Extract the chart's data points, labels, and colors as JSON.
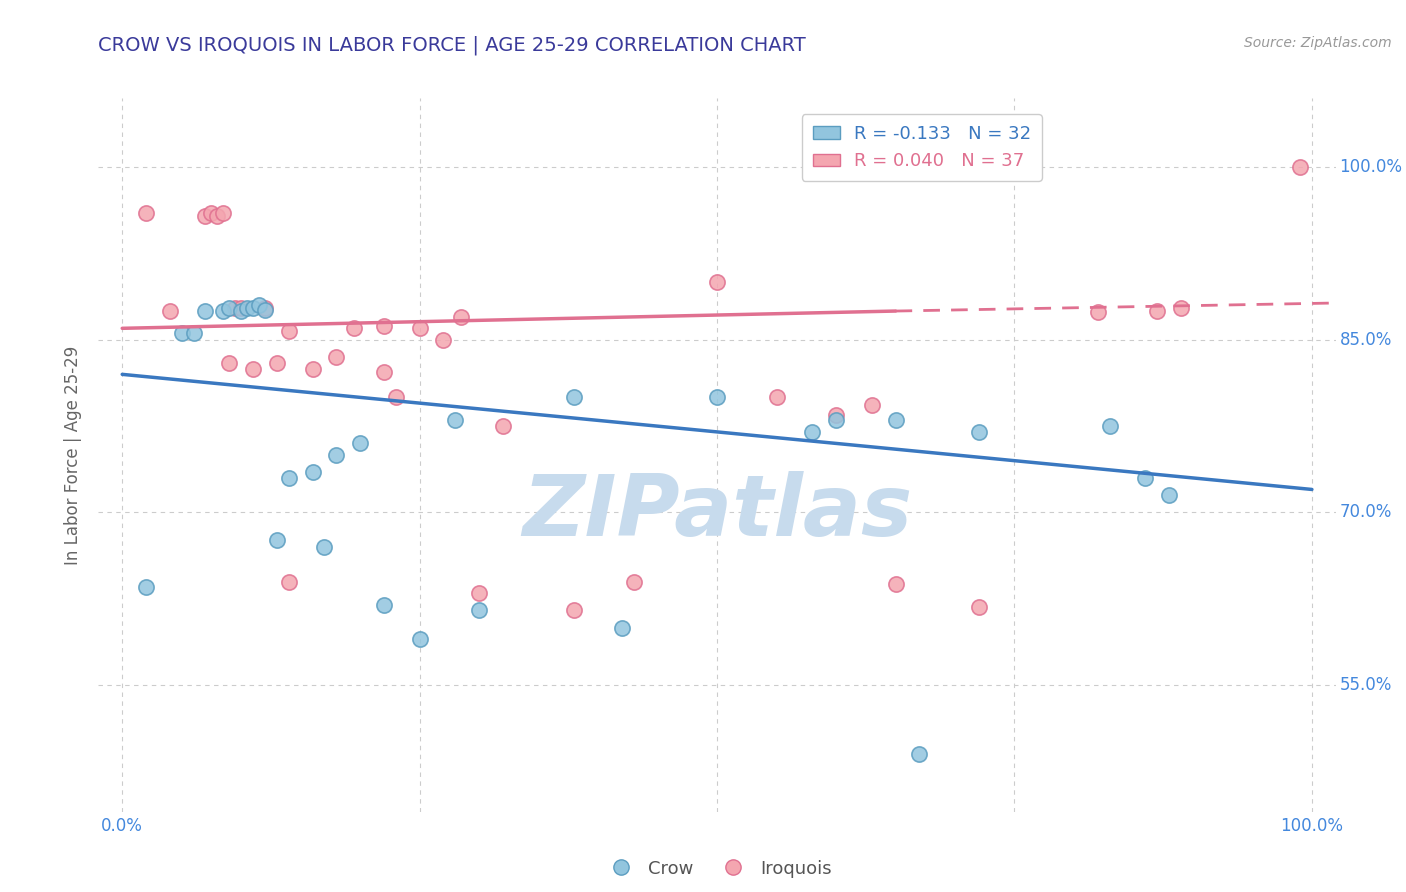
{
  "title": "CROW VS IROQUOIS IN LABOR FORCE | AGE 25-29 CORRELATION CHART",
  "source_text": "Source: ZipAtlas.com",
  "ylabel": "In Labor Force | Age 25-29",
  "xlim": [
    -0.02,
    1.02
  ],
  "ylim": [
    0.44,
    1.06
  ],
  "yticks": [
    0.55,
    0.7,
    0.85,
    1.0
  ],
  "ytick_labels": [
    "55.0%",
    "70.0%",
    "85.0%",
    "100.0%"
  ],
  "xtick_labels_left": "0.0%",
  "xtick_labels_right": "100.0%",
  "crow_color": "#92c5de",
  "iroquois_color": "#f4a6b0",
  "crow_edge_color": "#5b9dc0",
  "iroquois_edge_color": "#e07090",
  "crow_R": -0.133,
  "crow_N": 32,
  "iroquois_R": 0.04,
  "iroquois_N": 37,
  "crow_line_color": "#3a78c0",
  "iroquois_line_color": "#e07090",
  "background_color": "#ffffff",
  "grid_color": "#cccccc",
  "title_color": "#3a3a9a",
  "axis_label_color": "#4488dd",
  "watermark": "ZIPatlas",
  "watermark_color_r": 0.78,
  "watermark_color_g": 0.86,
  "watermark_color_b": 0.93,
  "crow_x": [
    0.02,
    0.07,
    0.085,
    0.09,
    0.1,
    0.105,
    0.11,
    0.115,
    0.12,
    0.05,
    0.06,
    0.14,
    0.16,
    0.18,
    0.2,
    0.22,
    0.28,
    0.3,
    0.38,
    0.5,
    0.58,
    0.65,
    0.72,
    0.83,
    0.86,
    0.88,
    0.13,
    0.17,
    0.25,
    0.42,
    0.6,
    0.67
  ],
  "crow_y": [
    0.635,
    0.875,
    0.875,
    0.878,
    0.875,
    0.878,
    0.878,
    0.88,
    0.876,
    0.856,
    0.856,
    0.73,
    0.735,
    0.75,
    0.76,
    0.62,
    0.78,
    0.615,
    0.8,
    0.8,
    0.77,
    0.78,
    0.77,
    0.775,
    0.73,
    0.715,
    0.676,
    0.67,
    0.59,
    0.6,
    0.78,
    0.49
  ],
  "iroquois_x": [
    0.02,
    0.04,
    0.07,
    0.075,
    0.08,
    0.085,
    0.09,
    0.095,
    0.1,
    0.11,
    0.12,
    0.13,
    0.14,
    0.16,
    0.18,
    0.195,
    0.22,
    0.23,
    0.25,
    0.285,
    0.32,
    0.38,
    0.43,
    0.5,
    0.55,
    0.6,
    0.63,
    0.65,
    0.72,
    0.82,
    0.87,
    0.89,
    0.99,
    0.27,
    0.22,
    0.14,
    0.3
  ],
  "iroquois_y": [
    0.96,
    0.875,
    0.958,
    0.96,
    0.958,
    0.96,
    0.83,
    0.878,
    0.878,
    0.825,
    0.878,
    0.83,
    0.858,
    0.825,
    0.835,
    0.86,
    0.862,
    0.8,
    0.86,
    0.87,
    0.775,
    0.615,
    0.64,
    0.9,
    0.8,
    0.785,
    0.793,
    0.638,
    0.618,
    0.874,
    0.875,
    0.878,
    1.0,
    0.85,
    0.822,
    0.64,
    0.63
  ]
}
